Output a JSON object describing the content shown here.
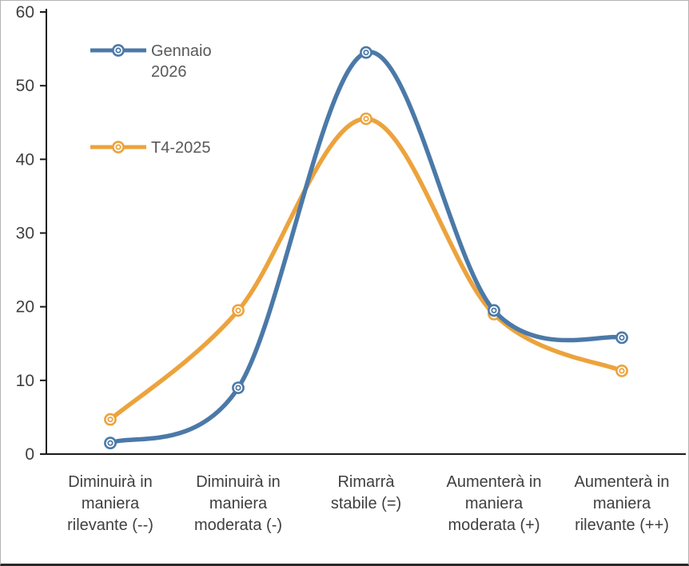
{
  "chart_data": {
    "type": "line",
    "title": "",
    "xlabel": "",
    "ylabel": "",
    "categories": [
      "Diminuirà in maniera rilevante (--)",
      "Diminuirà in maniera moderata (-)",
      "Rimarrà stabile (=)",
      "Aumenterà in maniera moderata (+)",
      "Aumenterà in maniera rilevante (++)"
    ],
    "categories_wrapped": [
      [
        "Diminuirà in",
        "maniera",
        "rilevante (--)"
      ],
      [
        "Diminuirà in",
        "maniera",
        "moderata (-)"
      ],
      [
        "Rimarrà",
        "stabile (=)"
      ],
      [
        "Aumenterà in",
        "maniera",
        "moderata (+)"
      ],
      [
        "Aumenterà in",
        "maniera",
        "rilevante (++)"
      ]
    ],
    "series": [
      {
        "name": "Gennaio 2026",
        "legend_lines": [
          "Gennaio",
          "2026"
        ],
        "color": "#4b79a8",
        "values": [
          1.5,
          9,
          54.5,
          19.5,
          15.8
        ]
      },
      {
        "name": "T4-2025",
        "legend_lines": [
          "T4-2025"
        ],
        "color": "#eca33d",
        "values": [
          4.7,
          19.5,
          45.5,
          19,
          11.3
        ]
      }
    ],
    "ylim": [
      0,
      60
    ],
    "yticks": [
      0,
      10,
      20,
      30,
      40,
      50,
      60
    ],
    "grid": false,
    "smooth": true,
    "legend_position": "top-left"
  },
  "colors": {
    "axis": "#1a1a1a",
    "tick_label": "#3f3f3f",
    "category_label": "#3f3f3f",
    "legend_label": "#595959",
    "marker_fill": "#ffffff",
    "background": "#ffffff",
    "border": "#b3b3b3"
  }
}
